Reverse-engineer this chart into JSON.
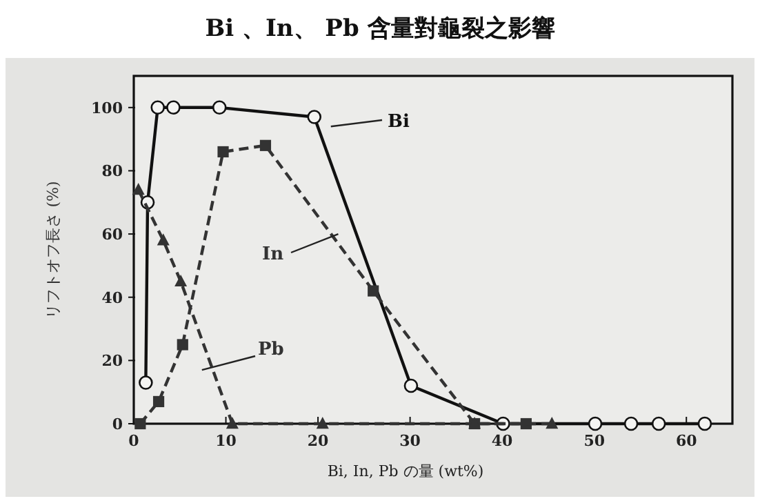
{
  "chart_data": {
    "type": "line",
    "title": "Bi 、In、 Pb 含量對龜裂之影響",
    "xlabel": "Bi, In, Pb の量 (wt%)",
    "ylabel": "リフトオフ長さ (%)",
    "xlim": [
      0,
      65
    ],
    "ylim": [
      0,
      110
    ],
    "xticks": [
      0,
      10,
      20,
      30,
      40,
      50,
      60
    ],
    "yticks": [
      0,
      20,
      40,
      60,
      80,
      100
    ],
    "grid": false,
    "series": [
      {
        "name": "Bi",
        "color": "#111111",
        "marker": "circle",
        "line_style": "solid",
        "x": [
          1.3,
          1.5,
          2.6,
          4.3,
          9.3,
          19.6,
          30.1,
          40.1,
          50.1,
          54,
          57,
          62
        ],
        "values": [
          13,
          70,
          100,
          100,
          100,
          97,
          12,
          0,
          0,
          0,
          0,
          0
        ]
      },
      {
        "name": "In",
        "color": "#333333",
        "marker": "square",
        "line_style": "dashed",
        "x": [
          0.7,
          2.7,
          5.3,
          9.7,
          14.3,
          26,
          37,
          42.6
        ],
        "values": [
          0,
          7,
          25,
          86,
          88,
          42,
          0,
          0
        ]
      },
      {
        "name": "Pb",
        "color": "#333333",
        "marker": "triangle",
        "line_style": "dashed",
        "x": [
          0.5,
          3.2,
          5.1,
          10.7,
          20.5,
          37,
          45.4
        ],
        "values": [
          74,
          58,
          45,
          0,
          0,
          0,
          0
        ]
      }
    ]
  }
}
